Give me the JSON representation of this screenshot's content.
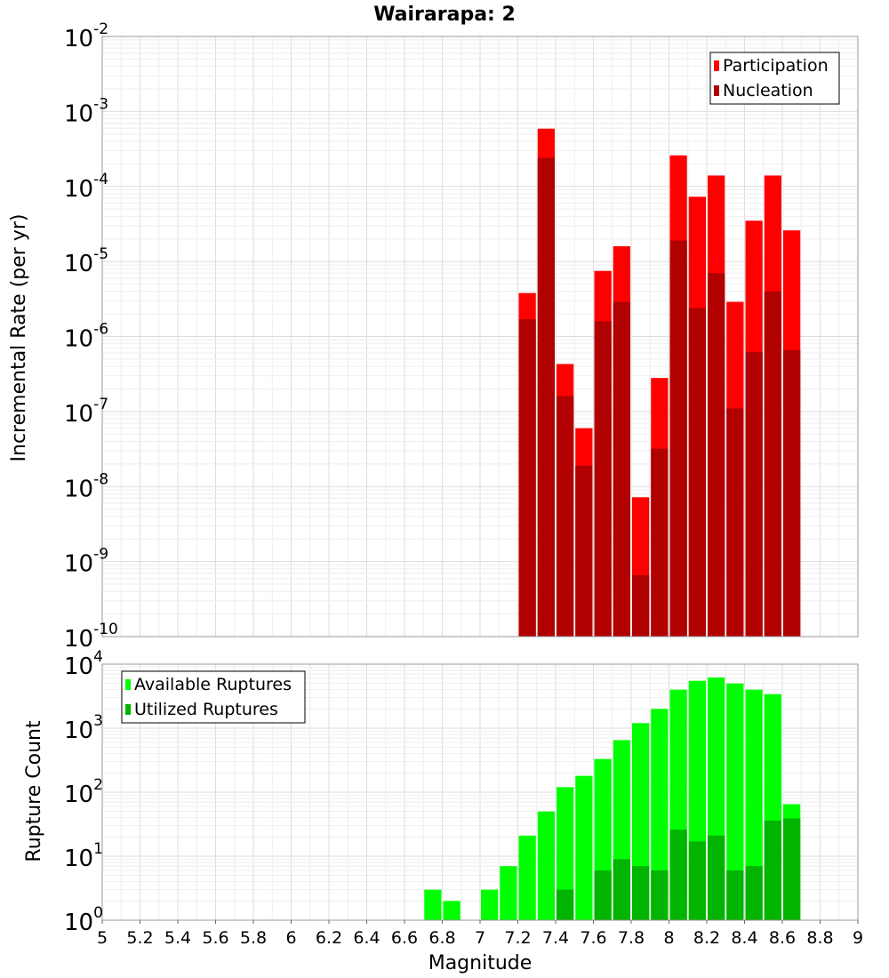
{
  "chart_data": [
    {
      "type": "bar",
      "title": "Wairarapa: 2",
      "xlabel": "Magnitude",
      "ylabel": "Incremental Rate (per yr)",
      "yscale": "log",
      "ylim_exponents": [
        -10,
        -2
      ],
      "xlim": [
        5,
        9
      ],
      "bin_width": 0.1,
      "grid": true,
      "legend_position": "top-right",
      "x": [
        7.25,
        7.35,
        7.45,
        7.55,
        7.65,
        7.75,
        7.85,
        7.95,
        8.05,
        8.15,
        8.25,
        8.35,
        8.45,
        8.55,
        8.65
      ],
      "series": [
        {
          "name": "Participation",
          "color": "#ff0000",
          "values": [
            3.8e-06,
            0.00059,
            4.3e-07,
            6e-08,
            7.5e-06,
            1.6e-05,
            7.2e-09,
            2.8e-07,
            0.00026,
            7.3e-05,
            0.00014,
            2.9e-06,
            3.5e-05,
            0.00014,
            2.6e-05
          ]
        },
        {
          "name": "Nucleation",
          "color": "#b00000",
          "values": [
            1.7e-06,
            0.00024,
            1.6e-07,
            1.9e-08,
            1.6e-06,
            2.9e-06,
            6.6e-10,
            3.2e-08,
            1.9e-05,
            2.4e-06,
            7e-06,
            1.1e-07,
            6.2e-07,
            4e-06,
            6.6e-07
          ]
        }
      ]
    },
    {
      "type": "bar",
      "title": "",
      "xlabel": "Magnitude",
      "ylabel": "Rupture Count",
      "yscale": "log",
      "ylim_exponents": [
        0,
        4
      ],
      "xlim": [
        5,
        9
      ],
      "bin_width": 0.1,
      "grid": true,
      "legend_position": "top-left",
      "x": [
        6.75,
        6.85,
        6.95,
        7.05,
        7.15,
        7.25,
        7.35,
        7.45,
        7.55,
        7.65,
        7.75,
        7.85,
        7.95,
        8.05,
        8.15,
        8.25,
        8.35,
        8.45,
        8.55,
        8.65
      ],
      "series": [
        {
          "name": "Available Ruptures",
          "color": "#00ff00",
          "values": [
            3,
            2,
            0,
            3,
            7,
            21,
            50,
            120,
            180,
            330,
            650,
            1200,
            2000,
            4000,
            5500,
            6200,
            5000,
            4000,
            3400,
            65
          ]
        },
        {
          "name": "Utilized Ruptures",
          "color": "#00b400",
          "values": [
            0,
            0,
            0,
            0,
            0,
            1,
            1,
            3,
            1,
            6,
            9,
            7,
            6,
            26,
            17,
            21,
            6,
            7,
            36,
            39
          ]
        }
      ]
    }
  ],
  "x_ticks": [
    "5",
    "5.2",
    "5.4",
    "5.6",
    "5.8",
    "6",
    "6.2",
    "6.4",
    "6.6",
    "6.8",
    "7",
    "7.2",
    "7.4",
    "7.6",
    "7.8",
    "8",
    "8.2",
    "8.4",
    "8.6",
    "8.8",
    "9"
  ],
  "top_y_ticks": [
    {
      "base": "10",
      "exp": "-2"
    },
    {
      "base": "10",
      "exp": "-3"
    },
    {
      "base": "10",
      "exp": "-4"
    },
    {
      "base": "10",
      "exp": "-5"
    },
    {
      "base": "10",
      "exp": "-6"
    },
    {
      "base": "10",
      "exp": "-7"
    },
    {
      "base": "10",
      "exp": "-8"
    },
    {
      "base": "10",
      "exp": "-9"
    },
    {
      "base": "10",
      "exp": "-10"
    }
  ],
  "bottom_y_ticks": [
    {
      "base": "10",
      "exp": "4"
    },
    {
      "base": "10",
      "exp": "3"
    },
    {
      "base": "10",
      "exp": "2"
    },
    {
      "base": "10",
      "exp": "1"
    },
    {
      "base": "10",
      "exp": "0"
    }
  ]
}
